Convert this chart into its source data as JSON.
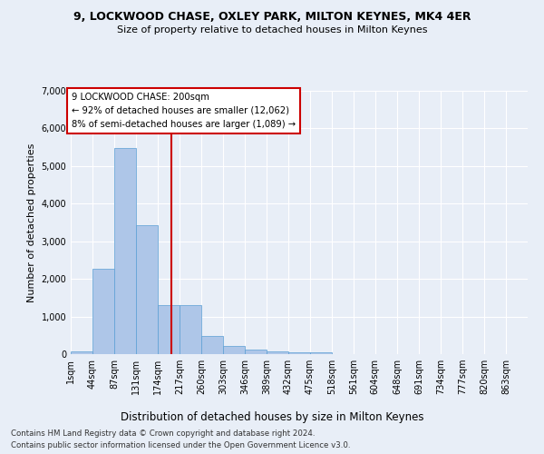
{
  "title1": "9, LOCKWOOD CHASE, OXLEY PARK, MILTON KEYNES, MK4 4ER",
  "title2": "Size of property relative to detached houses in Milton Keynes",
  "xlabel": "Distribution of detached houses by size in Milton Keynes",
  "ylabel": "Number of detached properties",
  "footer1": "Contains HM Land Registry data © Crown copyright and database right 2024.",
  "footer2": "Contains public sector information licensed under the Open Government Licence v3.0.",
  "annotation_title": "9 LOCKWOOD CHASE: 200sqm",
  "annotation_line1": "← 92% of detached houses are smaller (12,062)",
  "annotation_line2": "8% of semi-detached houses are larger (1,089) →",
  "property_size": 200,
  "bar_color": "#aec6e8",
  "bar_edge_color": "#5a9fd4",
  "vline_color": "#cc0000",
  "background_color": "#e8eef7",
  "annotation_box_color": "#ffffff",
  "annotation_box_edge": "#cc0000",
  "categories": [
    "1sqm",
    "44sqm",
    "87sqm",
    "131sqm",
    "174sqm",
    "217sqm",
    "260sqm",
    "303sqm",
    "346sqm",
    "389sqm",
    "432sqm",
    "475sqm",
    "518sqm",
    "561sqm",
    "604sqm",
    "648sqm",
    "691sqm",
    "734sqm",
    "777sqm",
    "820sqm",
    "863sqm"
  ],
  "bin_edges": [
    1,
    44,
    87,
    131,
    174,
    217,
    260,
    303,
    346,
    389,
    432,
    475,
    518,
    561,
    604,
    648,
    691,
    734,
    777,
    820,
    863,
    906
  ],
  "values": [
    75,
    2280,
    5470,
    3420,
    1310,
    1310,
    490,
    215,
    120,
    75,
    55,
    50,
    0,
    0,
    0,
    0,
    0,
    0,
    0,
    0,
    0
  ],
  "ylim": [
    0,
    7000
  ],
  "yticks": [
    0,
    1000,
    2000,
    3000,
    4000,
    5000,
    6000,
    7000
  ]
}
